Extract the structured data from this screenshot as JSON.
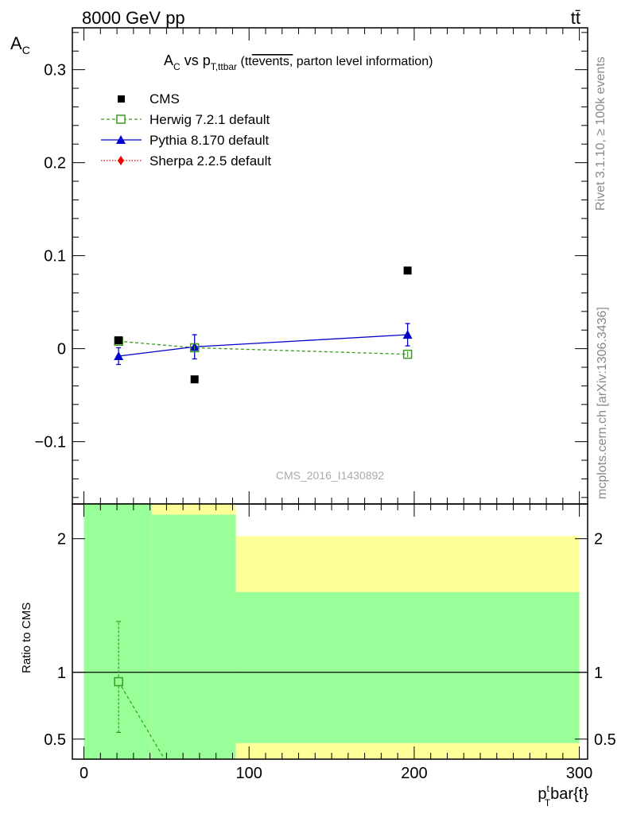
{
  "header": {
    "energy": "8000 GeV pp",
    "process": "tt̄"
  },
  "side_labels": {
    "rivet": "Rivet 3.1.10, ≥ 100k events",
    "source": "mcplots.cern.ch [arXiv:1306.3436]"
  },
  "chart_data": [
    {
      "type": "scatter",
      "panel": "main",
      "title_parts": {
        "a": "A",
        "a_sub": "C",
        "vs": " vs p",
        "p_sub": "T,ttbar",
        "paren_open": " (",
        "tt": "tt",
        "events": "events,",
        "rest": " parton level information)"
      },
      "ylabel": "A",
      "ylabel_sub": "C",
      "watermark": "CMS_2016_I1430892",
      "xlim": [
        -7,
        305
      ],
      "ylim": [
        -0.167,
        0.345
      ],
      "y_ticks": [
        -0.1,
        0,
        0.1,
        0.2,
        0.3
      ],
      "y_tick_labels": [
        "−0.1",
        "0",
        "0.1",
        "0.2",
        "0.3"
      ],
      "legend_position": "top-left",
      "series": [
        {
          "name": "CMS",
          "color": "#000000",
          "marker": "filled-square",
          "points": [
            {
              "x": 21,
              "y": 0.009
            },
            {
              "x": 67,
              "y": -0.033
            },
            {
              "x": 196,
              "y": 0.084
            }
          ]
        },
        {
          "name": "Herwig 7.2.1 default",
          "color": "#3a9a1e",
          "marker": "open-square",
          "line": "dashed",
          "points": [
            {
              "x": 21,
              "y": 0.008,
              "err": 0.002
            },
            {
              "x": 67,
              "y": 0.001,
              "err": 0.002
            },
            {
              "x": 196,
              "y": -0.006,
              "err": 0.003
            }
          ]
        },
        {
          "name": "Pythia 8.170 default",
          "color": "#0000cc",
          "marker": "filled-triangle",
          "line": "solid",
          "points": [
            {
              "x": 21,
              "y": -0.008,
              "err": 0.009
            },
            {
              "x": 67,
              "y": 0.002,
              "err": 0.013
            },
            {
              "x": 196,
              "y": 0.015,
              "err": 0.012
            }
          ]
        },
        {
          "name": "Sherpa 2.2.5 default",
          "color": "#ee0000",
          "marker": "filled-diamond",
          "line": "dotted",
          "points": []
        }
      ]
    },
    {
      "type": "line",
      "panel": "ratio",
      "ylabel": "Ratio to CMS",
      "xlabel_parts": {
        "p": "p",
        "sup": "t",
        "sub": "T",
        "rest": "bar{t}"
      },
      "xlim": [
        -7,
        305
      ],
      "ylim": [
        0.35,
        2.26
      ],
      "x_ticks": [
        0,
        100,
        200,
        300
      ],
      "x_tick_labels": [
        "0",
        "100",
        "200",
        "300"
      ],
      "y_ticks": [
        0.5,
        1,
        2
      ],
      "y_tick_labels": [
        "0.5",
        "1",
        "2"
      ],
      "reference_line": 1,
      "bands": [
        {
          "x0": 0,
          "x1": 41,
          "yellow": [
            0.35,
            2.26
          ],
          "green": [
            0.35,
            2.26
          ]
        },
        {
          "x0": 41,
          "x1": 92,
          "yellow": [
            0.35,
            2.26
          ],
          "green": [
            0.35,
            2.18
          ]
        },
        {
          "x0": 92,
          "x1": 300,
          "yellow": [
            0.35,
            2.02
          ],
          "green": [
            0.47,
            1.6
          ]
        }
      ],
      "band_colors": {
        "yellow": "#ffff99",
        "green": "#99ff99"
      },
      "herwig_ratio": [
        {
          "x": 21,
          "y": 0.93,
          "lo": 0.55,
          "hi": 1.38
        },
        {
          "x": 67,
          "y": -0.03
        }
      ]
    }
  ]
}
